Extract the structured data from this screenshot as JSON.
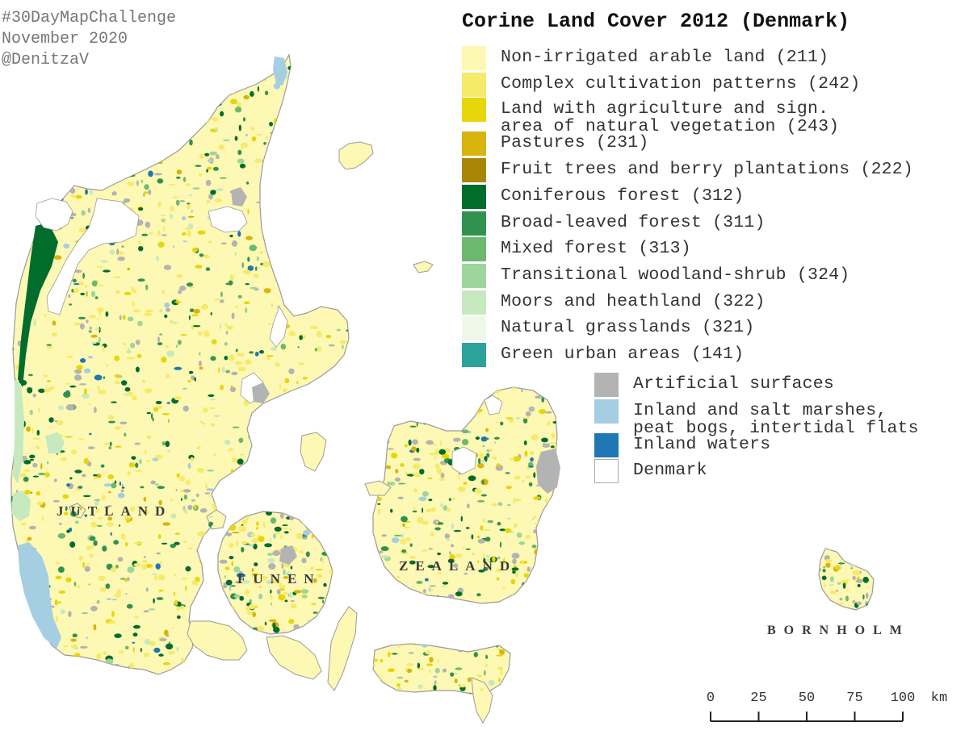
{
  "credits": [
    "#30DayMapChallenge",
    "November 2020",
    "@DenitzaV"
  ],
  "title": "Corine Land Cover 2012 (Denmark)",
  "legend": [
    {
      "label": "Non-irrigated arable land (211)",
      "color": "#fdf8b4"
    },
    {
      "label": "Complex cultivation patterns (242)",
      "color": "#f6ea6a"
    },
    {
      "label": "Land with agriculture and sign.\narea of natural vegetation (243)",
      "color": "#e6d60a"
    },
    {
      "label": "Pastures (231)",
      "color": "#d8b40c"
    },
    {
      "label": "Fruit trees and berry plantations (222)",
      "color": "#a88706"
    },
    {
      "label": "Coniferous forest (312)",
      "color": "#006d2c"
    },
    {
      "label": "Broad-leaved forest (311)",
      "color": "#31924f"
    },
    {
      "label": "Mixed forest (313)",
      "color": "#6bb86f"
    },
    {
      "label": "Transitional woodland-shrub (324)",
      "color": "#9ed59c"
    },
    {
      "label": "Moors and heathland (322)",
      "color": "#c7e9c0"
    },
    {
      "label": "Natural grasslands (321)",
      "color": "#eef8e8"
    },
    {
      "label": "Green urban areas (141)",
      "color": "#2ca39a"
    }
  ],
  "legend2": [
    {
      "label": "Artificial surfaces",
      "color": "#b3b3b3"
    },
    {
      "label": "Inland and salt marshes,\npeat bogs, intertidal flats",
      "color": "#a6cee3"
    },
    {
      "label": "Inland waters",
      "color": "#1f78b4"
    },
    {
      "label": "Denmark",
      "color": "#ffffff"
    }
  ],
  "regions": {
    "jutland": "JUTLAND",
    "funen": "FUNEN",
    "zealand": "ZEALAND",
    "bornholm": "BORNHOLM"
  },
  "scale": {
    "ticks": [
      "0",
      "25",
      "50",
      "75",
      "100"
    ],
    "unit": "km"
  },
  "colors": {
    "land": "#fdf8b4",
    "outline": "#9a9a9a"
  }
}
